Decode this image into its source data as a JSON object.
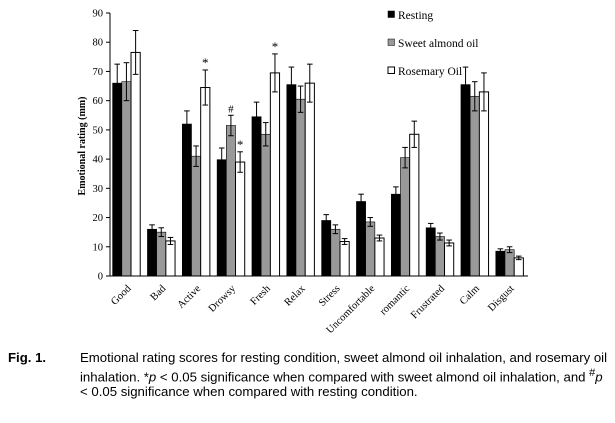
{
  "chart_data": {
    "type": "bar",
    "ylabel": "Emotional rating (mm)",
    "ylim": [
      0,
      90
    ],
    "yticks": [
      0,
      10,
      20,
      30,
      40,
      50,
      60,
      70,
      80,
      90
    ],
    "categories": [
      "Good",
      "Bad",
      "Active",
      "Drowsy",
      "Fresh",
      "Relax",
      "Stress",
      "Uncomfortable",
      "romantic",
      "Frustrated",
      "Calm",
      "Disgust"
    ],
    "series": [
      {
        "name": "Resting",
        "color": "#000000",
        "values": [
          66,
          16,
          52,
          39.8,
          54.5,
          65.5,
          19,
          25.5,
          28,
          16.5,
          65.5,
          8.5
        ],
        "errors": [
          6.5,
          1.5,
          4.5,
          4,
          5,
          6,
          2,
          2.5,
          2.5,
          1.5,
          6,
          0.8
        ]
      },
      {
        "name": "Sweet almond oil",
        "color": "#999999",
        "values": [
          66.5,
          15,
          41,
          51.5,
          48.5,
          60.5,
          16,
          18.5,
          40.5,
          13.5,
          61.5,
          9
        ],
        "errors": [
          6.5,
          1.5,
          3.5,
          3.5,
          4,
          4.5,
          1.5,
          1.5,
          3.5,
          1.2,
          5,
          1
        ]
      },
      {
        "name": "Rosemary Oil",
        "color": "#ffffff",
        "values": [
          76.5,
          12,
          64.5,
          39,
          69.5,
          66,
          11.8,
          13,
          48.5,
          11.3,
          63,
          6.2
        ],
        "errors": [
          7.5,
          1.2,
          6,
          3.5,
          6.5,
          6.5,
          1,
          1,
          4.5,
          1,
          6.5,
          0.6
        ]
      }
    ],
    "annotations": [
      {
        "category": "Active",
        "series": "Rosemary Oil",
        "text": "*"
      },
      {
        "category": "Drowsy",
        "series": "Sweet almond oil",
        "text": "#"
      },
      {
        "category": "Drowsy",
        "series": "Rosemary Oil",
        "text": "*"
      },
      {
        "category": "Fresh",
        "series": "Rosemary Oil",
        "text": "*"
      }
    ],
    "legend": {
      "position": "top-right"
    }
  },
  "caption": {
    "label": "Fig. 1.",
    "text_1": "Emotional rating scores for resting condition, sweet almond oil inhalation, and rosemary oil inhalation. *",
    "p1": "p",
    "text_2": " < 0.05 significance when compared with sweet almond oil inhalation, and ",
    "hash": "#",
    "p2": "p",
    "text_3": " < 0.05 significance when compared with resting condition."
  }
}
